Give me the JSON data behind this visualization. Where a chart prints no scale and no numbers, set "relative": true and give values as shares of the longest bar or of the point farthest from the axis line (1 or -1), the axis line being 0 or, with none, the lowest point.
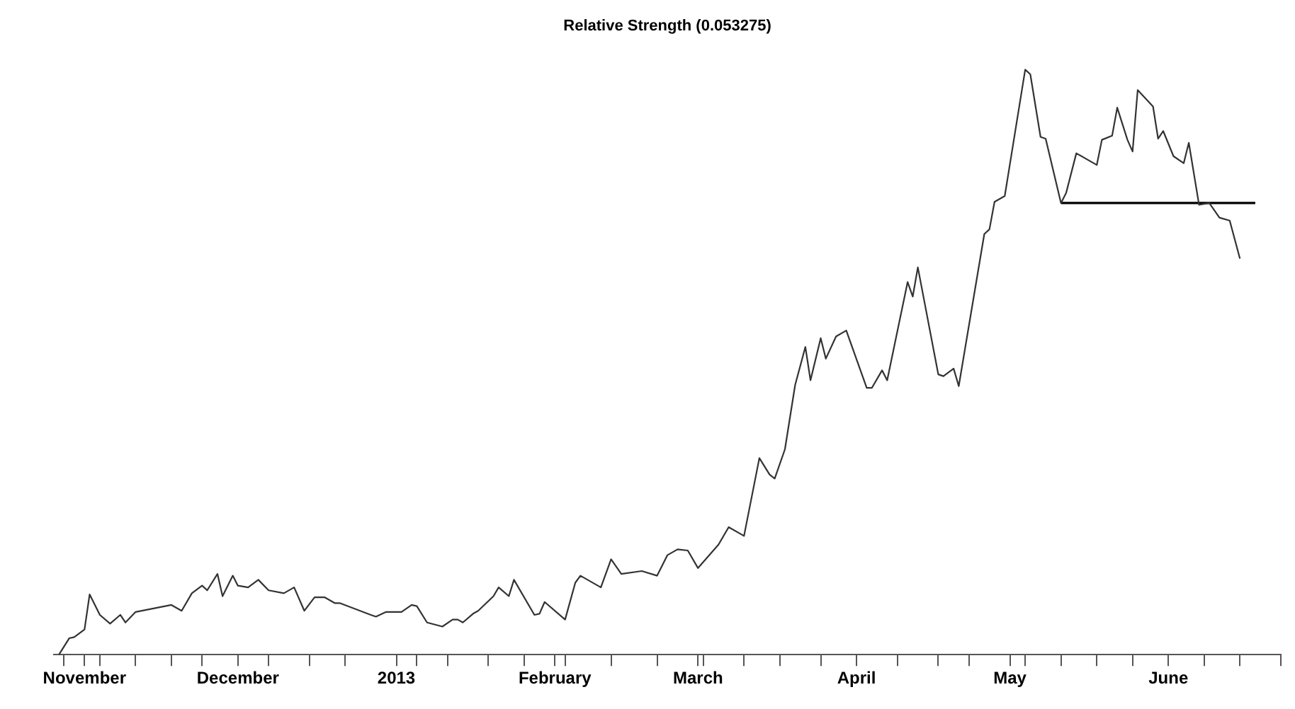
{
  "chart_data": {
    "type": "line",
    "title": "Relative Strength (0.053275)",
    "relative": true,
    "legend": false,
    "grid": false,
    "tick_labels": "x",
    "marker": "none",
    "line_style": "solid",
    "xlim": [
      "2012-10-26",
      "2013-06-23"
    ],
    "xticks": [
      {
        "value": "2012-10-28",
        "label": null
      },
      {
        "value": "2012-11-01",
        "label": "November"
      },
      {
        "value": "2012-11-04",
        "label": null
      },
      {
        "value": "2012-11-11",
        "label": null
      },
      {
        "value": "2012-11-18",
        "label": null
      },
      {
        "value": "2012-11-24",
        "label": null
      },
      {
        "value": "2012-12-01",
        "label": "December"
      },
      {
        "value": "2012-12-07",
        "label": null
      },
      {
        "value": "2012-12-15",
        "label": null
      },
      {
        "value": "2012-12-22",
        "label": null
      },
      {
        "value": "2013-01-01",
        "label": "2013"
      },
      {
        "value": "2013-01-05",
        "label": null
      },
      {
        "value": "2013-01-11",
        "label": null
      },
      {
        "value": "2013-01-19",
        "label": null
      },
      {
        "value": "2013-01-26",
        "label": null
      },
      {
        "value": "2013-02-01",
        "label": "February"
      },
      {
        "value": "2013-02-03",
        "label": null
      },
      {
        "value": "2013-02-12",
        "label": null
      },
      {
        "value": "2013-02-21",
        "label": null
      },
      {
        "value": "2013-03-01",
        "label": "March"
      },
      {
        "value": "2013-03-02",
        "label": null
      },
      {
        "value": "2013-03-10",
        "label": null
      },
      {
        "value": "2013-03-17",
        "label": null
      },
      {
        "value": "2013-03-25",
        "label": null
      },
      {
        "value": "2013-04-01",
        "label": "April"
      },
      {
        "value": "2013-04-09",
        "label": null
      },
      {
        "value": "2013-04-17",
        "label": null
      },
      {
        "value": "2013-04-23",
        "label": null
      },
      {
        "value": "2013-05-01",
        "label": "May"
      },
      {
        "value": "2013-05-04",
        "label": null
      },
      {
        "value": "2013-05-11",
        "label": null
      },
      {
        "value": "2013-05-18",
        "label": null
      },
      {
        "value": "2013-05-25",
        "label": null
      },
      {
        "value": "2013-06-01",
        "label": "June"
      },
      {
        "value": "2013-06-08",
        "label": null
      },
      {
        "value": "2013-06-15",
        "label": null
      },
      {
        "value": "2013-06-23",
        "label": null
      }
    ],
    "series": [
      {
        "color": "#333333",
        "x": [
          "2012-10-27",
          "2012-10-29",
          "2012-10-30",
          "2012-11-01",
          "2012-11-02",
          "2012-11-04",
          "2012-11-06",
          "2012-11-08",
          "2012-11-09",
          "2012-11-11",
          "2012-11-18",
          "2012-11-20",
          "2012-11-22",
          "2012-11-24",
          "2012-11-25",
          "2012-11-27",
          "2012-11-28",
          "2012-11-30",
          "2012-12-01",
          "2012-12-03",
          "2012-12-05",
          "2012-12-07",
          "2012-12-10",
          "2012-12-12",
          "2012-12-14",
          "2012-12-16",
          "2012-12-18",
          "2012-12-20",
          "2012-12-21",
          "2012-12-27",
          "2012-12-28",
          "2012-12-30",
          "2013-01-02",
          "2013-01-04",
          "2013-01-05",
          "2013-01-07",
          "2013-01-10",
          "2013-01-12",
          "2013-01-13",
          "2013-01-14",
          "2013-01-16",
          "2013-01-17",
          "2013-01-20",
          "2013-01-21",
          "2013-01-23",
          "2013-01-24",
          "2013-01-28",
          "2013-01-29",
          "2013-01-30",
          "2013-02-03",
          "2013-02-05",
          "2013-02-06",
          "2013-02-10",
          "2013-02-12",
          "2013-02-14",
          "2013-02-18",
          "2013-02-21",
          "2013-02-23",
          "2013-02-25",
          "2013-02-27",
          "2013-03-01",
          "2013-03-03",
          "2013-03-05",
          "2013-03-07",
          "2013-03-10",
          "2013-03-13",
          "2013-03-15",
          "2013-03-16",
          "2013-03-18",
          "2013-03-20",
          "2013-03-22",
          "2013-03-23",
          "2013-03-25",
          "2013-03-26",
          "2013-03-28",
          "2013-03-30",
          "2013-04-03",
          "2013-04-04",
          "2013-04-06",
          "2013-04-07",
          "2013-04-11",
          "2013-04-12",
          "2013-04-13",
          "2013-04-17",
          "2013-04-18",
          "2013-04-20",
          "2013-04-21",
          "2013-04-26",
          "2013-04-27",
          "2013-04-28",
          "2013-04-30",
          "2013-05-04",
          "2013-05-05",
          "2013-05-07",
          "2013-05-08",
          "2013-05-11",
          "2013-05-12",
          "2013-05-14",
          "2013-05-18",
          "2013-05-19",
          "2013-05-21",
          "2013-05-22",
          "2013-05-24",
          "2013-05-25",
          "2013-05-26",
          "2013-05-29",
          "2013-05-30",
          "2013-05-31",
          "2013-06-02",
          "2013-06-04",
          "2013-06-05",
          "2013-06-07",
          "2013-06-09",
          "2013-06-11",
          "2013-06-13",
          "2013-06-15"
        ],
        "values": [
          0,
          0.028,
          0.03,
          0.043,
          0.103,
          0.068,
          0.053,
          0.068,
          0.055,
          0.073,
          0.085,
          0.075,
          0.105,
          0.118,
          0.11,
          0.138,
          0.1,
          0.135,
          0.118,
          0.115,
          0.128,
          0.11,
          0.105,
          0.115,
          0.075,
          0.098,
          0.098,
          0.088,
          0.088,
          0.068,
          0.065,
          0.073,
          0.073,
          0.085,
          0.083,
          0.055,
          0.048,
          0.06,
          0.06,
          0.055,
          0.07,
          0.075,
          0.1,
          0.115,
          0.1,
          0.128,
          0.068,
          0.07,
          0.09,
          0.06,
          0.123,
          0.135,
          0.115,
          0.163,
          0.138,
          0.143,
          0.135,
          0.17,
          0.18,
          0.178,
          0.148,
          0.168,
          0.188,
          0.218,
          0.203,
          0.336,
          0.308,
          0.301,
          0.351,
          0.461,
          0.526,
          0.469,
          0.541,
          0.506,
          0.544,
          0.554,
          0.456,
          0.456,
          0.486,
          0.469,
          0.637,
          0.612,
          0.662,
          0.479,
          0.476,
          0.489,
          0.459,
          0.719,
          0.727,
          0.774,
          0.784,
          1,
          0.992,
          0.885,
          0.882,
          0.772,
          0.789,
          0.857,
          0.837,
          0.88,
          0.887,
          0.935,
          0.88,
          0.86,
          0.965,
          0.937,
          0.882,
          0.895,
          0.852,
          0.84,
          0.875,
          0.769,
          0.772,
          0.747,
          0.742,
          0.677
        ]
      },
      {
        "type": "line",
        "color": "#000000",
        "x": [
          "2013-05-11",
          "2013-06-18"
        ],
        "values": [
          0.772,
          0.772
        ]
      }
    ]
  }
}
